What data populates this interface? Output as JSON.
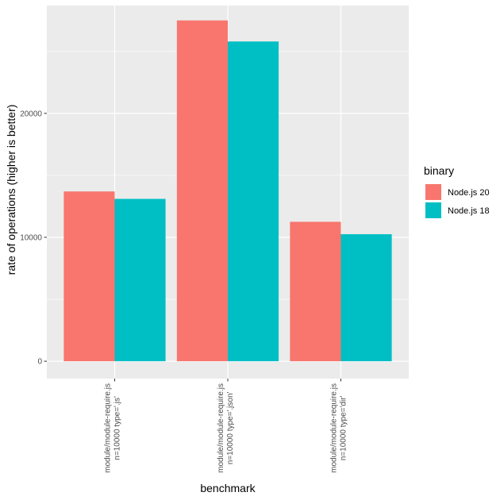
{
  "chart_data": {
    "type": "bar",
    "xlabel": "benchmark",
    "ylabel": "rate of operations (higher is better)",
    "categories": [
      [
        "module/module-require.js",
        "n=10000 type='.js'"
      ],
      [
        "module/module-require.js",
        "n=10000 type='.json'"
      ],
      [
        "module/module-require.js",
        "n=10000 type='dir'"
      ]
    ],
    "series": [
      {
        "name": "Node.js 20",
        "color": "#F8766D",
        "values": [
          13700,
          27500,
          11250
        ]
      },
      {
        "name": "Node.js 18",
        "color": "#00BFC4",
        "values": [
          13100,
          25800,
          10250
        ]
      }
    ],
    "ylim": [
      -1400,
      28700
    ],
    "yticks": [
      0,
      10000,
      20000
    ],
    "ytick_labels": [
      "0",
      "10000",
      "20000"
    ],
    "grid": true,
    "panel_background": "#EBEBEB",
    "legend": {
      "title": "binary",
      "position": "right"
    }
  }
}
